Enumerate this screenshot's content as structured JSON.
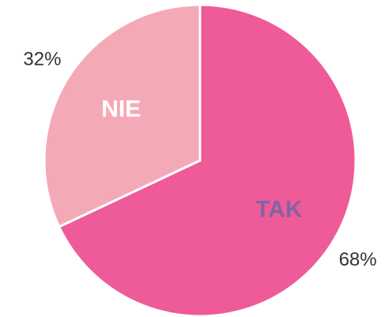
{
  "chart_data": {
    "type": "pie",
    "categories": [
      "TAK",
      "NIE"
    ],
    "values": [
      68,
      32
    ],
    "value_labels": [
      "68%",
      "32%"
    ],
    "colors": [
      "#ef5a98",
      "#f4aab6"
    ],
    "label_colors": [
      "#8064a2",
      "#ffffff"
    ]
  }
}
